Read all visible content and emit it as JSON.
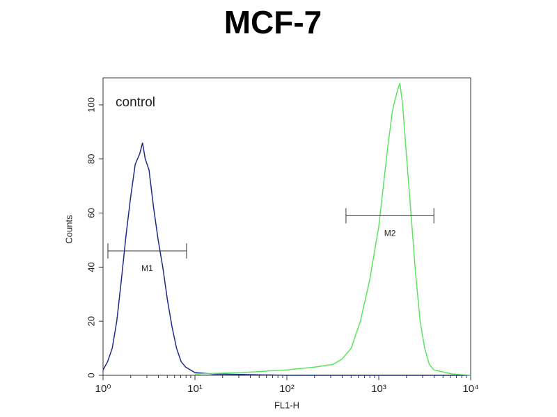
{
  "chart_data": {
    "type": "line",
    "title": "MCF-7",
    "xlabel": "FL1-H",
    "ylabel": "Counts",
    "annotation": "control",
    "log_x": true,
    "xlim": [
      1,
      10000
    ],
    "ylim": [
      0,
      110
    ],
    "xticks": [
      {
        "value": 1,
        "label": "10⁰"
      },
      {
        "value": 10,
        "label": "10¹"
      },
      {
        "value": 100,
        "label": "10²"
      },
      {
        "value": 1000,
        "label": "10³"
      },
      {
        "value": 10000,
        "label": "10⁴"
      }
    ],
    "yticks": [
      0,
      20,
      40,
      60,
      80,
      100
    ],
    "series": [
      {
        "color": "#1f2a8a",
        "x": [
          1,
          1.12,
          1.26,
          1.41,
          1.58,
          1.78,
          2.0,
          2.24,
          2.51,
          2.69,
          2.88,
          3.16,
          3.55,
          3.98,
          4.47,
          5.01,
          5.62,
          6.31,
          7.08,
          7.94,
          10,
          15.8,
          31.6,
          100,
          1000,
          10000
        ],
        "values": [
          2,
          5,
          10,
          20,
          35,
          52,
          66,
          78,
          82,
          86,
          80,
          76,
          62,
          50,
          40,
          28,
          18,
          10,
          5,
          3,
          1,
          0.5,
          0.3,
          0,
          0,
          0
        ]
      },
      {
        "color": "#5ee35e",
        "x": [
          10,
          31.6,
          100,
          200,
          316,
          398,
          501,
          631,
          794,
          1000,
          1122,
          1259,
          1413,
          1585,
          1698,
          1820,
          1995,
          2239,
          2512,
          2818,
          3162,
          3548,
          3981,
          6310,
          10000
        ],
        "values": [
          0.5,
          1,
          2,
          3,
          4,
          6,
          10,
          20,
          35,
          55,
          70,
          85,
          98,
          105,
          108,
          100,
          82,
          60,
          38,
          20,
          10,
          4,
          2,
          0.5,
          0
        ]
      }
    ],
    "markers": [
      {
        "label": "M1",
        "range": [
          1.13,
          8.1
        ],
        "y": 46
      },
      {
        "label": "M2",
        "range": [
          440,
          3980
        ],
        "y": 59
      }
    ]
  }
}
